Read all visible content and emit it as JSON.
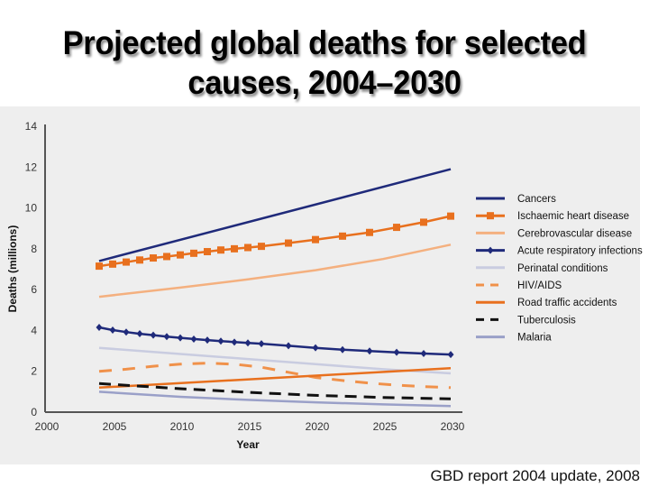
{
  "title": "Projected global deaths for selected causes, 2004–2030",
  "source": "GBD report 2004 update, 2008",
  "chart_data": {
    "type": "line",
    "title": "Projected global deaths for selected causes, 2004–2030",
    "xlabel": "Year",
    "ylabel": "Deaths (millions)",
    "xlim": [
      2000,
      2030
    ],
    "ylim": [
      0,
      14
    ],
    "xticks": [
      2000,
      2005,
      2010,
      2015,
      2020,
      2025,
      2030
    ],
    "yticks": [
      0,
      2,
      4,
      6,
      8,
      10,
      12,
      14
    ],
    "grid": false,
    "legend_position": "right",
    "series": [
      {
        "name": "Cancers",
        "color": "#1f2a7a",
        "style": "solid",
        "marker": "none",
        "x": [
          2004,
          2030
        ],
        "y": [
          7.4,
          11.9
        ]
      },
      {
        "name": "Ischaemic heart disease",
        "color": "#e8701e",
        "style": "solid",
        "marker": "square",
        "x": [
          2004,
          2005,
          2006,
          2007,
          2008,
          2009,
          2010,
          2011,
          2012,
          2013,
          2014,
          2015,
          2016,
          2018,
          2020,
          2022,
          2024,
          2026,
          2028,
          2030
        ],
        "y": [
          7.15,
          7.25,
          7.35,
          7.45,
          7.55,
          7.62,
          7.7,
          7.78,
          7.86,
          7.94,
          8.0,
          8.06,
          8.12,
          8.28,
          8.45,
          8.62,
          8.8,
          9.05,
          9.3,
          9.6
        ]
      },
      {
        "name": "Cerebrovascular disease",
        "color": "#f4b07f",
        "style": "solid",
        "marker": "none",
        "x": [
          2004,
          2010,
          2015,
          2020,
          2025,
          2030
        ],
        "y": [
          5.65,
          6.1,
          6.5,
          6.95,
          7.5,
          8.2
        ]
      },
      {
        "name": "Acute respiratory infections",
        "color": "#1f2a7a",
        "style": "solid",
        "marker": "diamond",
        "x": [
          2004,
          2005,
          2006,
          2007,
          2008,
          2009,
          2010,
          2011,
          2012,
          2013,
          2014,
          2015,
          2016,
          2018,
          2020,
          2022,
          2024,
          2026,
          2028,
          2030
        ],
        "y": [
          4.15,
          4.02,
          3.92,
          3.84,
          3.77,
          3.7,
          3.64,
          3.58,
          3.53,
          3.48,
          3.43,
          3.39,
          3.35,
          3.25,
          3.15,
          3.06,
          2.99,
          2.93,
          2.87,
          2.82
        ]
      },
      {
        "name": "Perinatal conditions",
        "color": "#c9cce0",
        "style": "solid",
        "marker": "none",
        "x": [
          2004,
          2010,
          2015,
          2020,
          2025,
          2030
        ],
        "y": [
          3.15,
          2.85,
          2.6,
          2.35,
          2.1,
          1.9
        ]
      },
      {
        "name": "HIV/AIDS",
        "color": "#f0914a",
        "style": "dashed",
        "marker": "none",
        "x": [
          2004,
          2006,
          2008,
          2010,
          2012,
          2014,
          2016,
          2018,
          2020,
          2022,
          2024,
          2026,
          2028,
          2030
        ],
        "y": [
          2.0,
          2.1,
          2.25,
          2.35,
          2.4,
          2.35,
          2.2,
          1.95,
          1.7,
          1.55,
          1.42,
          1.32,
          1.25,
          1.2
        ]
      },
      {
        "name": "Road traffic accidents",
        "color": "#e8701e",
        "style": "solid",
        "marker": "none",
        "x": [
          2004,
          2030
        ],
        "y": [
          1.2,
          2.15
        ]
      },
      {
        "name": "Tuberculosis",
        "color": "#111111",
        "style": "dashed",
        "marker": "none",
        "x": [
          2004,
          2010,
          2015,
          2020,
          2025,
          2030
        ],
        "y": [
          1.4,
          1.15,
          0.97,
          0.82,
          0.72,
          0.65
        ]
      },
      {
        "name": "Malaria",
        "color": "#9aa0c8",
        "style": "solid",
        "marker": "none",
        "x": [
          2004,
          2010,
          2015,
          2020,
          2025,
          2030
        ],
        "y": [
          1.0,
          0.75,
          0.6,
          0.48,
          0.38,
          0.3
        ]
      }
    ]
  }
}
